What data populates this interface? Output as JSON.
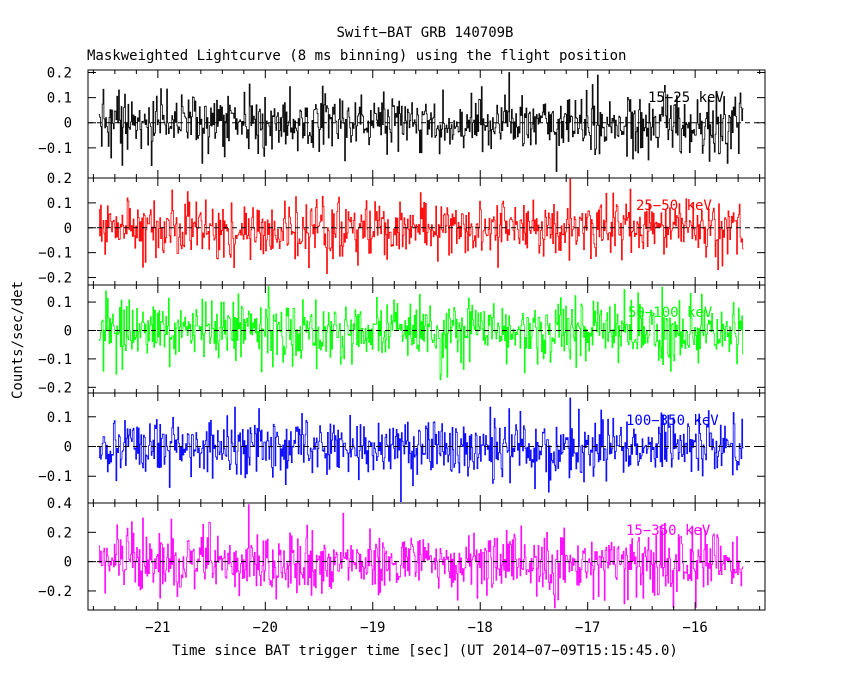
{
  "chart_data": {
    "type": "line",
    "title": "Swift−BAT GRB 140709B",
    "subtitle": "Maskweighted Lightcurve (8 ms binning) using the flight position",
    "xlabel": "Time since BAT trigger time [sec] (UT 2014−07−09T15:15:45.0)",
    "ylabel": "Counts/sec/det",
    "xlim": [
      -21.65,
      -15.35
    ],
    "x_ticks": [
      -21,
      -20,
      -19,
      -18,
      -17,
      -16
    ],
    "x_tick_labels": [
      "−21",
      "−20",
      "−19",
      "−18",
      "−17",
      "−16"
    ],
    "x_start": -21.55,
    "x_end": -15.55,
    "bin_size": 0.008,
    "zero_line_style": "dashed",
    "panels": [
      {
        "name": "15−25 keV",
        "color": "#000000",
        "ylim": [
          -0.22,
          0.21
        ],
        "noise_sigma": 0.06,
        "y_ticks": [
          0.2,
          0.1,
          0,
          -0.1
        ],
        "y_tick_labels": [
          "0.2",
          "0.1",
          "0",
          "−0.1"
        ]
      },
      {
        "name": "25−50 keV",
        "color": "#ff0000",
        "ylim": [
          -0.23,
          0.2
        ],
        "noise_sigma": 0.06,
        "y_ticks": [
          0.2,
          0.1,
          0,
          -0.1,
          -0.2
        ],
        "y_tick_labels": [
          "0.2",
          "0.1",
          "0",
          "−0.1",
          "−0.2"
        ]
      },
      {
        "name": "50−100 keV",
        "color": "#00ff00",
        "ylim": [
          -0.22,
          0.16
        ],
        "noise_sigma": 0.055,
        "y_ticks": [
          0.1,
          0,
          -0.1,
          -0.2
        ],
        "y_tick_labels": [
          "0.1",
          "0",
          "−0.1",
          "−0.2"
        ]
      },
      {
        "name": "100−350 keV",
        "color": "#0000ff",
        "ylim": [
          -0.19,
          0.18
        ],
        "noise_sigma": 0.05,
        "y_ticks": [
          0.1,
          0,
          -0.1
        ],
        "y_tick_labels": [
          "0.1",
          "0",
          "−0.1"
        ]
      },
      {
        "name": "15−350 keV",
        "color": "#ff00ff",
        "ylim": [
          -0.33,
          0.4
        ],
        "noise_sigma": 0.11,
        "y_ticks": [
          0.4,
          0.2,
          0,
          -0.2
        ],
        "y_tick_labels": [
          "0.4",
          "0.2",
          "0",
          "−0.2"
        ]
      }
    ]
  }
}
